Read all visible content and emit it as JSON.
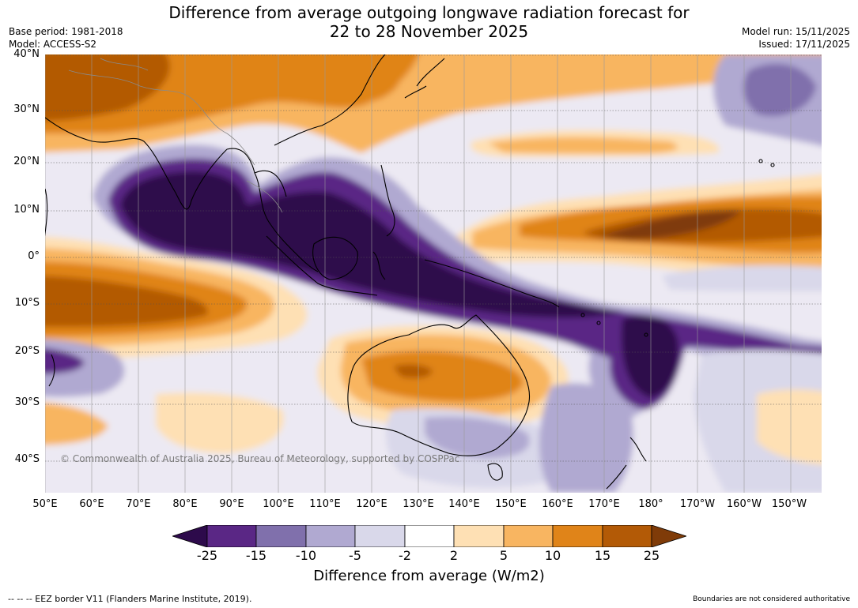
{
  "title_line1": "Difference from average outgoing longwave radiation forecast for",
  "title_line2": "22 to 28 November 2025",
  "meta": {
    "base_period": "Base period: 1981-2018",
    "model": "Model: ACCESS-S2",
    "model_run": "Model run: 15/11/2025",
    "issued": "Issued: 17/11/2025"
  },
  "lat_labels": [
    "40°N",
    "30°N",
    "20°N",
    "10°N",
    "0°",
    "10°S",
    "20°S",
    "30°S",
    "40°S"
  ],
  "lon_labels": [
    "50°E",
    "60°E",
    "70°E",
    "80°E",
    "90°E",
    "100°E",
    "110°E",
    "120°E",
    "130°E",
    "140°E",
    "150°E",
    "160°E",
    "170°E",
    "180°",
    "170°W",
    "160°W",
    "150°W"
  ],
  "copyright": "© Commonwealth of Australia 2025, Bureau of Meteorology, supported by COSPPac",
  "colorbar": {
    "ticks": [
      "-25",
      "-15",
      "-10",
      "-5",
      "-2",
      "2",
      "5",
      "10",
      "15",
      "25"
    ],
    "colors": [
      "#2d0a4b",
      "#5a2785",
      "#8070ac",
      "#b0a9d1",
      "#d9d8ea",
      "#ffffff",
      "#fee0b4",
      "#f8b561",
      "#e08419",
      "#b35a06",
      "#7f3b08"
    ],
    "label": "Difference from average (W/m2)"
  },
  "eez_note": "--  --  -- EEZ border V11 (Flanders Marine Institute, 2019).",
  "boundary_note": "Boundaries are not considered authoritative"
}
